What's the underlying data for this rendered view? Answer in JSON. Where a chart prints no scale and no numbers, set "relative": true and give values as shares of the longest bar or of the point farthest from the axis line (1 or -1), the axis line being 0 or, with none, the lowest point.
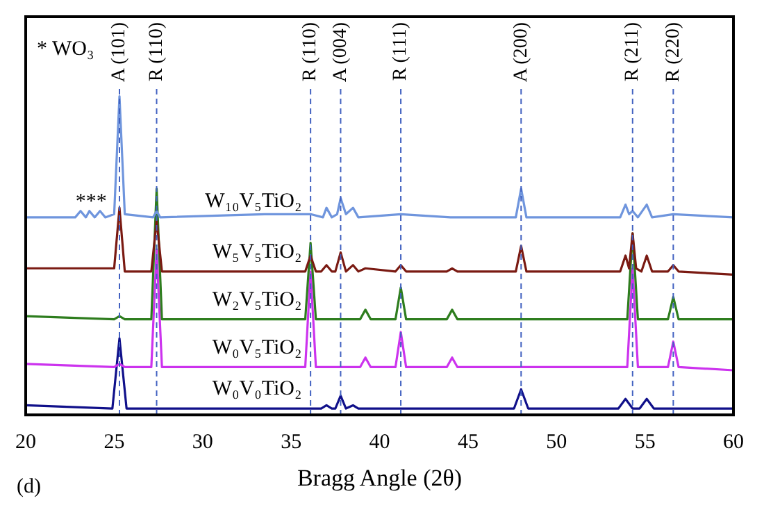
{
  "chart_data": {
    "type": "line",
    "xlabel": "Bragg Angle (2θ)",
    "relative": true,
    "xlim": [
      20,
      60
    ],
    "xticks": [
      20,
      25,
      30,
      35,
      40,
      45,
      50,
      55,
      60
    ],
    "grid": false,
    "legend": false,
    "marker": "none",
    "line_style": "solid",
    "series": [
      {
        "name": "W₁₀V₅TiO₂",
        "color": "#6f95dd",
        "x": [
          20,
          22.8,
          23.1,
          23.4,
          23.6,
          23.9,
          24.2,
          24.5,
          25.0,
          25.3,
          25.6,
          27.2,
          27.4,
          27.6,
          33.5,
          34.2,
          36.1,
          36.8,
          37.0,
          37.3,
          37.6,
          37.8,
          38.1,
          38.5,
          38.8,
          41.2,
          44.0,
          47.7,
          48.0,
          48.3,
          53.6,
          53.9,
          54.1,
          54.3,
          54.6,
          55.1,
          55.4,
          56.6,
          60
        ],
        "values": [
          0.62,
          0.62,
          0.64,
          0.62,
          0.64,
          0.62,
          0.64,
          0.62,
          0.63,
          1.0,
          0.63,
          0.62,
          0.64,
          0.62,
          0.63,
          0.63,
          0.63,
          0.62,
          0.65,
          0.62,
          0.63,
          0.68,
          0.63,
          0.65,
          0.62,
          0.63,
          0.62,
          0.62,
          0.71,
          0.62,
          0.62,
          0.66,
          0.63,
          0.64,
          0.62,
          0.66,
          0.62,
          0.63,
          0.62
        ]
      },
      {
        "name": "W₅V₅TiO₂",
        "color": "#7a1a12",
        "x": [
          20,
          25.0,
          25.3,
          25.6,
          27.1,
          27.4,
          27.7,
          35.8,
          36.1,
          36.4,
          36.7,
          37.0,
          37.3,
          37.5,
          37.8,
          38.1,
          38.5,
          38.8,
          39.2,
          40.9,
          41.2,
          41.5,
          43.8,
          44.1,
          44.4,
          47.7,
          48.0,
          48.3,
          53.6,
          53.9,
          54.1,
          54.3,
          54.5,
          54.8,
          55.1,
          55.4,
          56.3,
          56.6,
          56.9,
          60
        ],
        "values": [
          0.46,
          0.46,
          0.65,
          0.45,
          0.45,
          0.61,
          0.45,
          0.45,
          0.5,
          0.45,
          0.45,
          0.47,
          0.45,
          0.45,
          0.51,
          0.45,
          0.47,
          0.45,
          0.46,
          0.45,
          0.47,
          0.45,
          0.45,
          0.46,
          0.45,
          0.45,
          0.53,
          0.45,
          0.45,
          0.5,
          0.46,
          0.57,
          0.46,
          0.45,
          0.5,
          0.45,
          0.45,
          0.47,
          0.45,
          0.44
        ]
      },
      {
        "name": "W₂V₅TiO₂",
        "color": "#2e7d1e",
        "x": [
          20,
          25.0,
          25.3,
          25.6,
          27.1,
          27.4,
          27.7,
          35.8,
          36.1,
          36.4,
          38.9,
          39.2,
          39.5,
          40.9,
          41.2,
          41.5,
          43.8,
          44.1,
          44.4,
          54.0,
          54.3,
          54.6,
          56.3,
          56.6,
          56.9,
          60
        ],
        "values": [
          0.31,
          0.3,
          0.31,
          0.3,
          0.3,
          0.71,
          0.3,
          0.3,
          0.54,
          0.3,
          0.3,
          0.33,
          0.3,
          0.3,
          0.4,
          0.3,
          0.3,
          0.33,
          0.3,
          0.3,
          0.57,
          0.3,
          0.3,
          0.37,
          0.3,
          0.3
        ]
      },
      {
        "name": "W₀V₅TiO₂",
        "color": "#cc33ee",
        "x": [
          20,
          25.0,
          25.3,
          25.6,
          27.1,
          27.4,
          27.7,
          35.8,
          36.1,
          36.4,
          38.9,
          39.2,
          39.5,
          40.9,
          41.2,
          41.5,
          43.8,
          44.1,
          44.4,
          54.0,
          54.3,
          54.6,
          56.3,
          56.6,
          56.9,
          60
        ],
        "values": [
          0.16,
          0.15,
          0.16,
          0.15,
          0.15,
          0.52,
          0.15,
          0.15,
          0.45,
          0.15,
          0.15,
          0.18,
          0.15,
          0.15,
          0.26,
          0.15,
          0.15,
          0.18,
          0.15,
          0.15,
          0.46,
          0.15,
          0.15,
          0.23,
          0.15,
          0.14
        ]
      },
      {
        "name": "W₀V₀TiO₂",
        "color": "#10108a",
        "x": [
          20,
          24.9,
          25.3,
          25.7,
          36.7,
          37.0,
          37.3,
          37.5,
          37.8,
          38.1,
          38.5,
          38.8,
          47.6,
          48.0,
          48.4,
          53.5,
          53.9,
          54.3,
          54.7,
          55.1,
          55.5,
          60
        ],
        "values": [
          0.03,
          0.02,
          0.24,
          0.02,
          0.02,
          0.03,
          0.02,
          0.02,
          0.06,
          0.02,
          0.03,
          0.02,
          0.02,
          0.08,
          0.02,
          0.02,
          0.05,
          0.02,
          0.02,
          0.05,
          0.02,
          0.02
        ]
      }
    ],
    "ref_lines": [
      {
        "axis": "x",
        "value": 25.3,
        "label": "A (101)",
        "color": "#4060c0",
        "line_style": "dashed"
      },
      {
        "axis": "x",
        "value": 27.4,
        "label": "R (110)",
        "color": "#4060c0",
        "line_style": "dashed"
      },
      {
        "axis": "x",
        "value": 36.1,
        "label": "R (110)",
        "color": "#4060c0",
        "line_style": "dashed"
      },
      {
        "axis": "x",
        "value": 37.8,
        "label": "A (004)",
        "color": "#4060c0",
        "line_style": "dashed"
      },
      {
        "axis": "x",
        "value": 41.2,
        "label": "R (111)",
        "color": "#4060c0",
        "line_style": "dashed"
      },
      {
        "axis": "x",
        "value": 48.0,
        "label": "A (200)",
        "color": "#4060c0",
        "line_style": "dashed"
      },
      {
        "axis": "x",
        "value": 54.3,
        "label": "R (211)",
        "color": "#4060c0",
        "line_style": "dashed"
      },
      {
        "axis": "x",
        "value": 56.6,
        "label": "R (220)",
        "color": "#4060c0",
        "line_style": "dashed"
      }
    ],
    "annotations": [
      "* WO₃",
      {
        "text": "***",
        "x": 23.7,
        "y": 0.66
      },
      "(d)"
    ]
  }
}
